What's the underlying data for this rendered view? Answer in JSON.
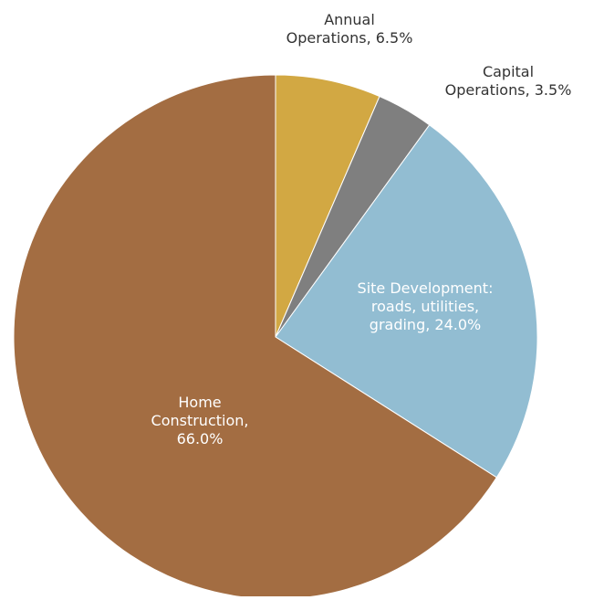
{
  "chart_data": {
    "type": "pie",
    "title": "",
    "slices": [
      {
        "label": [
          "Annual",
          "Operations, 6.5%"
        ],
        "value": 6.5,
        "color": "#D2A843",
        "label_color": "#333333",
        "label_inside": false
      },
      {
        "label": [
          "Capital",
          "Operations, 3.5%"
        ],
        "value": 3.5,
        "color": "#7F7F7F",
        "label_color": "#333333",
        "label_inside": false
      },
      {
        "label": [
          "Site Development:",
          "roads, utilities,",
          "grading, 24.0%"
        ],
        "value": 24.0,
        "color": "#92BDD2",
        "label_color": "#ffffff",
        "label_inside": true
      },
      {
        "label": [
          "Home",
          "Construction,",
          "66.0%"
        ],
        "value": 66.0,
        "color": "#A36D42",
        "label_color": "#ffffff",
        "label_inside": true
      }
    ]
  }
}
